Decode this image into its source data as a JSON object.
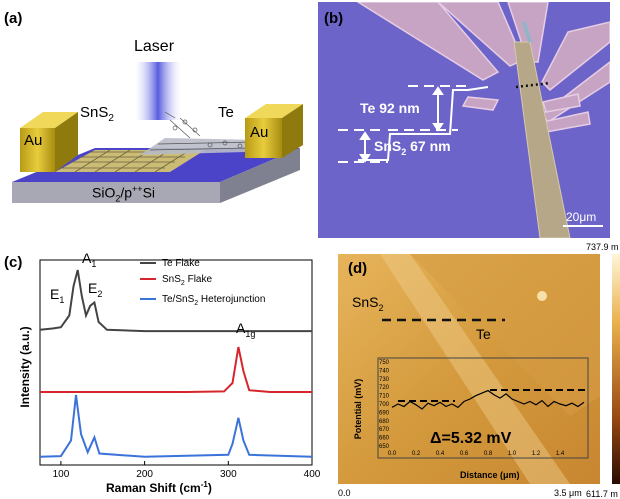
{
  "panels": {
    "a": {
      "label": "(a)",
      "laser": "Laser",
      "sns2": "SnS",
      "sns2_sub": "2",
      "te": "Te",
      "au_left": "Au",
      "au_right": "Au",
      "substrate": "SiO",
      "substrate_sub": "2",
      "substrate_rest": "/p",
      "substrate_sup": "++",
      "substrate_end": "Si"
    },
    "b": {
      "label": "(b)",
      "te_thickness": "Te 92 nm",
      "sns2_thickness": "SnS",
      "sns2_sub": "2",
      "sns2_value": " 67 nm",
      "scale_bar": "20μm"
    },
    "c": {
      "label": "(c)",
      "ylabel": "Intensity (a.u.)",
      "xlabel": "Raman Shift (cm",
      "xlabel_sup": "-1",
      "xlabel_end": ")",
      "peaks": {
        "A1": "A",
        "A1_sub": "1",
        "E1": "E",
        "E1_sub": "1",
        "E2": "E",
        "E2_sub": "2",
        "A1g": "A",
        "A1g_sub": "1g"
      },
      "legend": [
        {
          "name": "Te Flake",
          "color": "#444444"
        },
        {
          "name": "SnS",
          "sub": "2",
          "rest": " Flake",
          "color": "#d7262b"
        },
        {
          "name": "Te/SnS",
          "sub": "2",
          "rest": " Heterojunction",
          "color": "#3b73d9"
        }
      ]
    },
    "d": {
      "label": "(d)",
      "sns2": "SnS",
      "sns2_sub": "2",
      "te": "Te",
      "colorbar_top": "737.9 m",
      "colorbar_bottom": "611.7 m",
      "x_start": "0.0",
      "x_end": "3.5 μm",
      "inset_ylabel": "Potential (mV)",
      "inset_xlabel": "Distance (μm)",
      "delta": "Δ=5.32 mV"
    }
  },
  "chart_data": [
    {
      "type": "line",
      "panel": "c",
      "xlabel": "Raman Shift (cm-1)",
      "ylabel": "Intensity (a.u.)",
      "xlim": [
        75,
        400
      ],
      "xticks": [
        100,
        200,
        300,
        400
      ],
      "series": [
        {
          "name": "Te Flake",
          "color": "#444444",
          "points": [
            [
              75,
              0.08
            ],
            [
              90,
              0.1
            ],
            [
              100,
              0.12
            ],
            [
              110,
              0.3
            ],
            [
              115,
              0.75
            ],
            [
              120,
              1.0
            ],
            [
              125,
              0.6
            ],
            [
              130,
              0.3
            ],
            [
              135,
              0.45
            ],
            [
              140,
              0.5
            ],
            [
              145,
              0.2
            ],
            [
              155,
              0.08
            ],
            [
              200,
              0.06
            ],
            [
              250,
              0.06
            ],
            [
              300,
              0.06
            ],
            [
              350,
              0.06
            ],
            [
              400,
              0.06
            ]
          ]
        },
        {
          "name": "SnS2 Flake",
          "color": "#d7262b",
          "points": [
            [
              75,
              0.05
            ],
            [
              150,
              0.05
            ],
            [
              250,
              0.05
            ],
            [
              295,
              0.06
            ],
            [
              305,
              0.2
            ],
            [
              312,
              0.8
            ],
            [
              318,
              0.4
            ],
            [
              325,
              0.08
            ],
            [
              350,
              0.05
            ],
            [
              400,
              0.05
            ]
          ]
        },
        {
          "name": "Te/SnS2 Heterojunction",
          "color": "#3b73d9",
          "points": [
            [
              75,
              0.05
            ],
            [
              100,
              0.06
            ],
            [
              112,
              0.3
            ],
            [
              118,
              1.0
            ],
            [
              124,
              0.4
            ],
            [
              132,
              0.12
            ],
            [
              140,
              0.35
            ],
            [
              146,
              0.1
            ],
            [
              200,
              0.05
            ],
            [
              300,
              0.08
            ],
            [
              305,
              0.25
            ],
            [
              312,
              0.65
            ],
            [
              318,
              0.3
            ],
            [
              325,
              0.08
            ],
            [
              400,
              0.05
            ]
          ]
        }
      ]
    },
    {
      "type": "line",
      "panel": "d-inset",
      "xlabel": "Distance (μm)",
      "ylabel": "Potential (mV)",
      "xlim": [
        0,
        1.6
      ],
      "ylim": [
        650,
        750
      ],
      "xticks": [
        0.0,
        0.2,
        0.4,
        0.6,
        0.8,
        1.0,
        1.2,
        1.4
      ],
      "yticks": [
        650,
        660,
        670,
        680,
        690,
        700,
        710,
        720,
        730,
        740,
        750
      ],
      "series": [
        {
          "name": "",
          "color": "#000000",
          "points": [
            [
              0.0,
              696
            ],
            [
              0.05,
              700
            ],
            [
              0.1,
              697
            ],
            [
              0.15,
              703
            ],
            [
              0.2,
              699
            ],
            [
              0.25,
              694
            ],
            [
              0.3,
              701
            ],
            [
              0.35,
              698
            ],
            [
              0.4,
              702
            ],
            [
              0.45,
              697
            ],
            [
              0.5,
              700
            ],
            [
              0.55,
              696
            ],
            [
              0.6,
              703
            ],
            [
              0.65,
              706
            ],
            [
              0.7,
              710
            ],
            [
              0.75,
              713
            ],
            [
              0.8,
              716
            ],
            [
              0.85,
              711
            ],
            [
              0.9,
              707
            ],
            [
              0.95,
              712
            ],
            [
              1.0,
              706
            ],
            [
              1.05,
              703
            ],
            [
              1.1,
              700
            ],
            [
              1.15,
              703
            ],
            [
              1.2,
              699
            ],
            [
              1.25,
              704
            ],
            [
              1.3,
              697
            ],
            [
              1.35,
              703
            ],
            [
              1.4,
              700
            ],
            [
              1.45,
              698
            ],
            [
              1.5,
              701
            ],
            [
              1.55,
              697
            ],
            [
              1.6,
              702
            ]
          ]
        }
      ]
    }
  ]
}
